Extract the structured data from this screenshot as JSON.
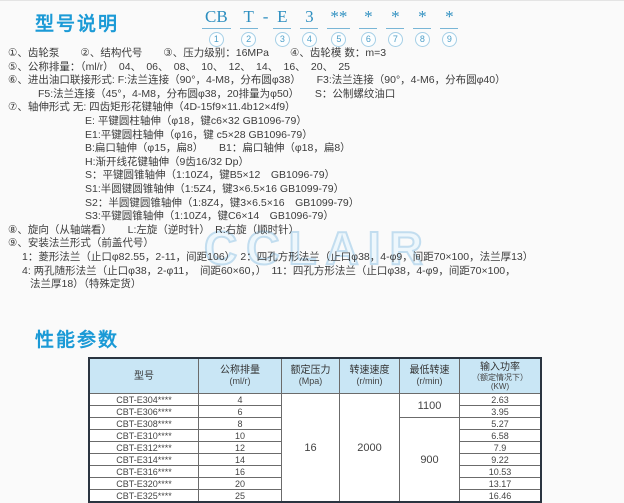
{
  "colors": {
    "accent": "#1b9ad6",
    "code_blue": "#2e8fc0",
    "table_header_bg": "#c9e6f5",
    "watermark_outline": "#c2ddef",
    "body_text": "#3c3c3c"
  },
  "watermark_text": "CCLAIR",
  "model_section": {
    "title": "型号说明",
    "code": {
      "dash": "-",
      "items": [
        {
          "text": "CB",
          "num": "1"
        },
        {
          "text": "T",
          "num": "2"
        },
        {
          "text": "E",
          "num": "3"
        },
        {
          "text": "3",
          "num": "4"
        },
        {
          "text": "**",
          "num": "5"
        },
        {
          "text": "*",
          "num": "6"
        },
        {
          "text": "*",
          "num": "7"
        },
        {
          "text": "*",
          "num": "8"
        },
        {
          "text": "*",
          "num": "9"
        }
      ]
    },
    "lines": [
      "①、齿轮泵　　②、结构代号　　③、压力级别：16MPa　　④、齿轮模 数：m=3",
      "⑤、公称排量：（ml/r）　04、　06、　08、　10、　12、　14、　16、　20、　25",
      "⑥、进出油口联接形式: F:法兰连接（90°，4-M8，分布圆φ38）　　F3:法兰连接（90°，4-M6，分布圆φ40）",
      "F5:法兰连接（45°，4-M8，分布圆φ38，20排量为φ50）　　S：公制螺纹油口",
      "⑦、轴伸形式 无: 四齿矩形花键轴伸（4D-15f9×11.4b12×4f9）",
      "E: 平键圆柱轴伸（φ18，键c6×32 GB1096-79）",
      "E1:平键圆柱轴伸（φ16，键 c5×28 GB1096-79）",
      "B:扁口轴伸（φ15，扁8）　　B1：扁口轴伸（φ18，扁8）",
      "H:渐开线花键轴伸（9齿16/32 Dp）",
      "S：平键圆锥轴伸（1:10Z4，键B5×12　GB1096-79）",
      "S1:半圆键圆锥轴伸（1:5Z4，键3×6.5×16 GB1099-79）",
      "S2：半圆键圆锥轴伸（1:8Z4，键3×6.5×16　GB1099-79）",
      "S3:平键圆锥轴伸（1:10Z4，键C6×14　GB1096-79）",
      "⑧、旋向（从轴端看）　　L:左旋（逆时针）　R:右旋（顺时针）",
      "⑨、安装法兰形式（前盖代号）",
      "1：菱形法兰（止口φ82.55，2-11，间距106）　2：四孔方形法兰（止口φ38，4-φ9，间距70×100，法兰厚13）",
      "4: 两孔随形法兰（止口φ38，2-φ11，　间距60×60，）　11：四孔方形法兰（止口φ38，4-φ9，间距70×100，",
      "法兰厚18）（特殊定货）"
    ]
  },
  "performance_section": {
    "title": "性能参数",
    "table": {
      "headers": {
        "model": {
          "title": "型号"
        },
        "displacement": {
          "title": "公称排量",
          "unit": "(ml/r)"
        },
        "pressure": {
          "title": "额定压力",
          "unit": "(Mpa)"
        },
        "speed": {
          "title": "转速速度",
          "unit": "(r/min)"
        },
        "min_speed": {
          "title": "最低转速",
          "unit": "(r/min)"
        },
        "power": {
          "title": "输入功率",
          "sub": "（额定情况下）",
          "unit": "(KW)"
        }
      },
      "rated_pressure": "16",
      "speed_value": "2000",
      "min_speed_high": "1100",
      "min_speed_low": "900",
      "rows": [
        {
          "model": "CBT-E304****",
          "displacement": "4",
          "power": "2.63"
        },
        {
          "model": "CBT-E306****",
          "displacement": "6",
          "power": "3.95"
        },
        {
          "model": "CBT-E308****",
          "displacement": "8",
          "power": "5.27"
        },
        {
          "model": "CBT-E310****",
          "displacement": "10",
          "power": "6.58"
        },
        {
          "model": "CBT-E312****",
          "displacement": "12",
          "power": "7.9"
        },
        {
          "model": "CBT-E314****",
          "displacement": "14",
          "power": "9.22"
        },
        {
          "model": "CBT-E316****",
          "displacement": "16",
          "power": "10.53"
        },
        {
          "model": "CBT-E320****",
          "displacement": "20",
          "power": "13.17"
        },
        {
          "model": "CBT-E325****",
          "displacement": "25",
          "power": "16.46"
        }
      ]
    }
  }
}
